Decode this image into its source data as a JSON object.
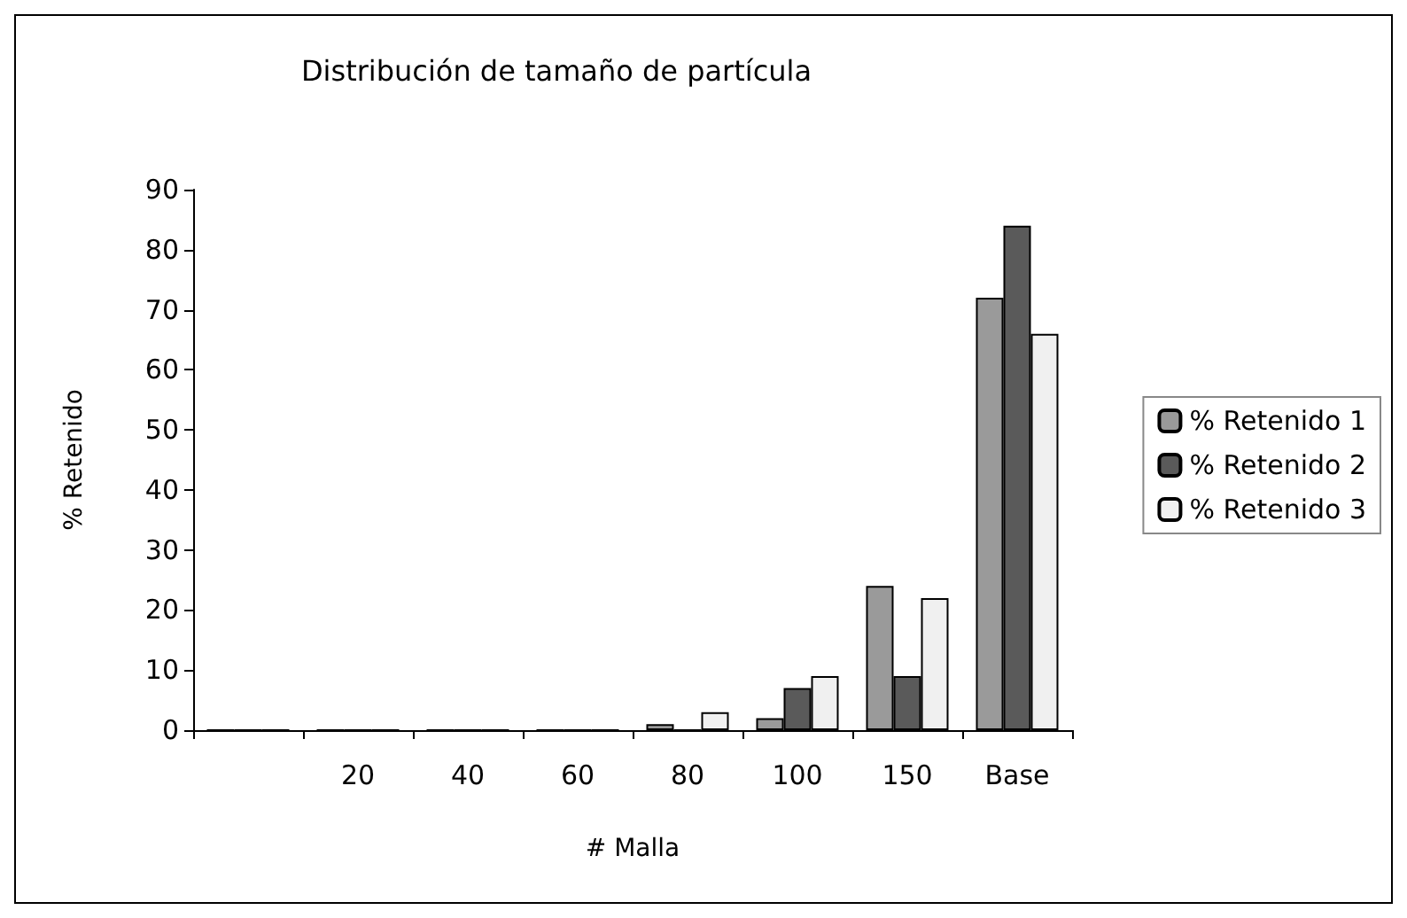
{
  "chart_data": {
    "type": "bar",
    "title": "Distribución de tamaño de partícula",
    "xlabel": "# Malla",
    "ylabel": "% Retenido",
    "categories": [
      null,
      "20",
      "40",
      "60",
      "80",
      "100",
      "150",
      "Base"
    ],
    "series": [
      {
        "name": "% Retenido 1",
        "color": "#9a9a9a",
        "values": [
          0,
          0,
          0,
          0,
          1,
          2,
          24,
          72
        ]
      },
      {
        "name": "% Retenido 2",
        "color": "#5a5a5a",
        "values": [
          0,
          0,
          0,
          0,
          0,
          7,
          9,
          84
        ]
      },
      {
        "name": "% Retenido 3",
        "color": "#f0f0f0",
        "values": [
          0,
          0,
          0,
          0,
          3,
          9,
          22,
          66
        ]
      }
    ],
    "ylim": [
      0,
      90
    ],
    "yticks": [
      0,
      10,
      20,
      30,
      40,
      50,
      60,
      70,
      80,
      90
    ],
    "grid": false,
    "legend": "right"
  }
}
